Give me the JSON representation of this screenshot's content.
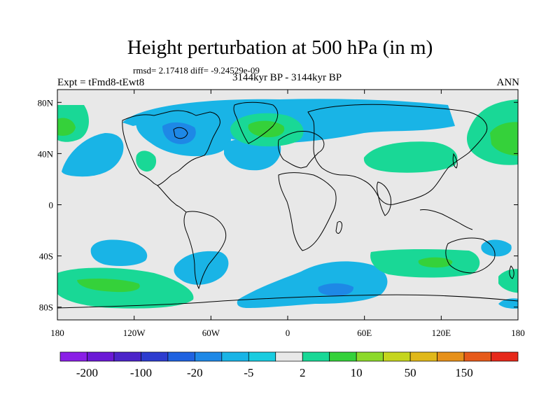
{
  "title": "Height perturbation at 500 hPa (in m)",
  "stats_text": "rmsd= 2.17418 diff= -9.24529e-09",
  "experiment": "Expt = tFmd8-tEwt8",
  "period": "3144kyr BP - 3144kyr BP",
  "season": "ANN",
  "colors": {
    "background_zero": "#e8e8e8",
    "coast": "#000000",
    "neg_light": "#19b4e6",
    "neg_mid": "#1e88e6",
    "pos_light": "#19d896",
    "pos_mid": "#35d13a"
  },
  "lat_labels": [
    "80N",
    "40N",
    "0",
    "40S",
    "80S"
  ],
  "lon_labels": [
    "180",
    "120W",
    "60W",
    "0",
    "60E",
    "120E",
    "180"
  ],
  "colorbar": {
    "colors": [
      "#8a1fe6",
      "#6b19d6",
      "#4c24c9",
      "#2d3ccf",
      "#1f62e0",
      "#1e88e6",
      "#19b4e6",
      "#19cce0",
      "#e8e8e8",
      "#19d896",
      "#35d13a",
      "#8cd92a",
      "#c5d51e",
      "#e0b81a",
      "#e6901a",
      "#e65a1a",
      "#e6281a"
    ],
    "labels": [
      "-200",
      "-100",
      "-20",
      "-5",
      "2",
      "10",
      "50",
      "150"
    ]
  }
}
